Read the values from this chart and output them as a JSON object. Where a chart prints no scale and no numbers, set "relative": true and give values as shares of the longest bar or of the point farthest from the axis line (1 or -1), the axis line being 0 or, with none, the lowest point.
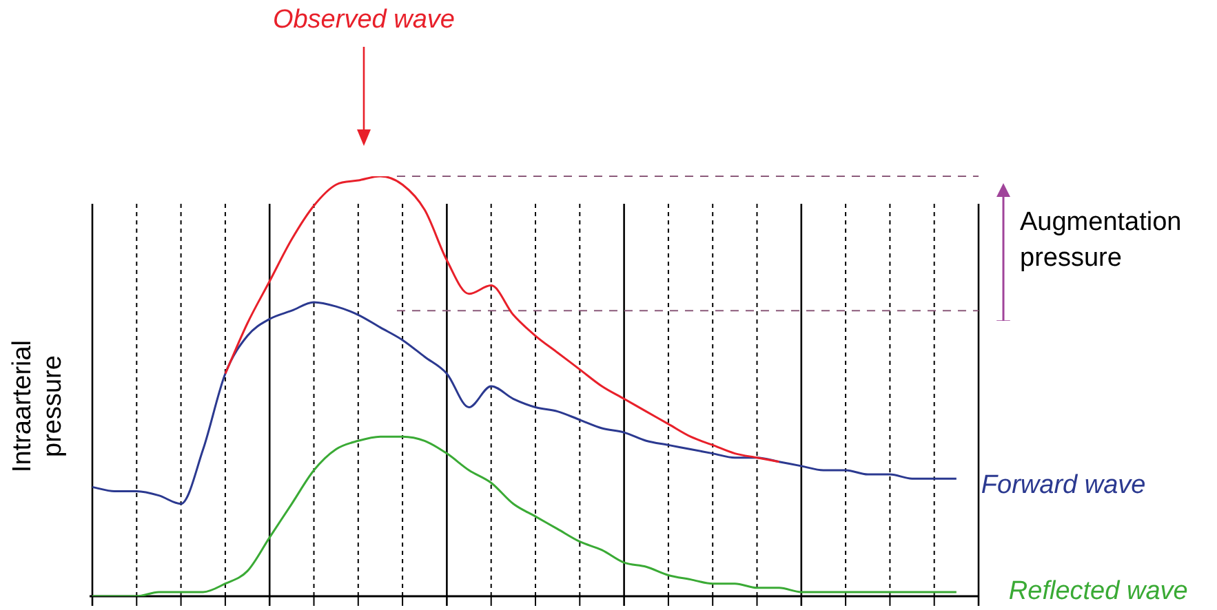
{
  "chart_data": {
    "type": "line",
    "relative": true,
    "ylabel": "Intraarterial pressure",
    "legend": false,
    "grid": "x",
    "marker": "none",
    "line_style": "solid",
    "categories": [
      null,
      null,
      null,
      null,
      null,
      null,
      null,
      null,
      null,
      null,
      null,
      null,
      null,
      null,
      null,
      null,
      null,
      null,
      null,
      null,
      null,
      null,
      null,
      null,
      null,
      null,
      null,
      null,
      null,
      null,
      null,
      null,
      null,
      null,
      null,
      null,
      null,
      null,
      null,
      null,
      null
    ],
    "series": [
      {
        "name": "Observed wave",
        "color": "#e8202a",
        "values": [
          null,
          null,
          null,
          null,
          null,
          null,
          0.53,
          0.65,
          0.75,
          0.85,
          0.93,
          0.98,
          0.99,
          1,
          0.98,
          0.92,
          0.8,
          0.72,
          0.74,
          0.67,
          0.62,
          0.58,
          0.54,
          0.5,
          0.47,
          0.44,
          0.41,
          0.38,
          0.36,
          0.34,
          0.33,
          0.32,
          null,
          null,
          null,
          null,
          null,
          null,
          null,
          null,
          null
        ]
      },
      {
        "name": "Forward wave",
        "color": "#2b3990",
        "values": [
          0.26,
          0.25,
          0.25,
          0.24,
          0.22,
          0.35,
          0.53,
          0.62,
          0.66,
          0.68,
          0.7,
          0.69,
          0.67,
          0.64,
          0.61,
          0.57,
          0.53,
          0.45,
          0.5,
          0.47,
          0.45,
          0.44,
          0.42,
          0.4,
          0.39,
          0.37,
          0.36,
          0.35,
          0.34,
          0.33,
          0.33,
          0.32,
          0.31,
          0.3,
          0.3,
          0.29,
          0.29,
          0.28,
          0.28,
          0.28,
          null
        ]
      },
      {
        "name": "Reflected wave",
        "color": "#3aaa35",
        "values": [
          0.0,
          0.0,
          0.0,
          0.01,
          0.01,
          0.01,
          0.03,
          0.06,
          0.14,
          0.22,
          0.3,
          0.35,
          0.37,
          0.38,
          0.38,
          0.37,
          0.34,
          0.3,
          0.27,
          0.22,
          0.19,
          0.16,
          0.13,
          0.11,
          0.08,
          0.07,
          0.05,
          0.04,
          0.03,
          0.03,
          0.02,
          0.02,
          0.01,
          0.01,
          0.01,
          0.01,
          0.01,
          0.01,
          0.01,
          0.01,
          null
        ]
      }
    ],
    "ref_lines": [
      {
        "axis": "y",
        "value": 1,
        "color": "#8b5a7a",
        "line_style": "dashed"
      },
      {
        "axis": "y",
        "value": 0.68,
        "color": "#8b5a7a",
        "line_style": "dashed"
      }
    ],
    "annotations": [
      "Augmentation pressure"
    ]
  }
}
